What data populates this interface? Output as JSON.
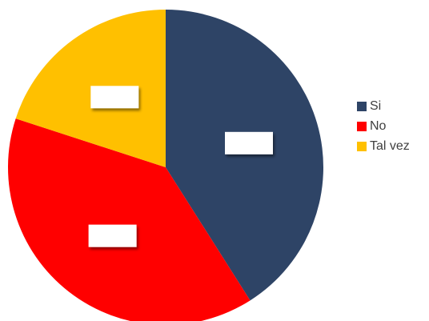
{
  "chart_data": {
    "type": "pie",
    "categories": [
      "Si",
      "No",
      "Tal vez"
    ],
    "values": [
      41,
      39,
      20
    ],
    "colors": [
      "#2E4466",
      "#FF0000",
      "#FFC000"
    ],
    "title": "",
    "legend_position": "right",
    "data_labels": [
      "",
      "",
      ""
    ]
  }
}
